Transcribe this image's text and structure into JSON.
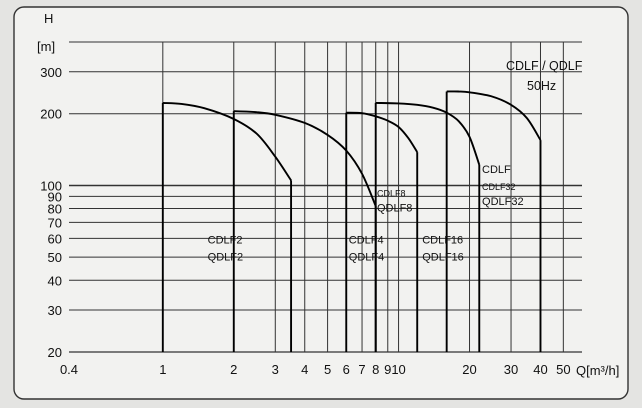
{
  "chart_data": {
    "type": "line",
    "title": "CDLF / QDLF",
    "subtitle": "50Hz",
    "ylabel_top": "H",
    "ylabel_unit": "[m]",
    "xlabel": "Q[m³/h]",
    "xscale": "log",
    "yscale": "log",
    "xlim": [
      0.4,
      60
    ],
    "ylim": [
      20,
      400
    ],
    "grid": true,
    "x_ticks": [
      0.4,
      1,
      2,
      3,
      4,
      5,
      6,
      7,
      8,
      9,
      10,
      20,
      30,
      40,
      50
    ],
    "x_tick_labels": [
      "0.4",
      "1",
      "2",
      "3",
      "4",
      "5",
      "6",
      "7",
      "8",
      "9",
      "10",
      "20",
      "30",
      "40",
      "50"
    ],
    "y_ticks": [
      20,
      30,
      40,
      50,
      60,
      70,
      80,
      90,
      100,
      200,
      300
    ],
    "y_tick_labels": [
      "20",
      "30",
      "40",
      "50",
      "60",
      "70",
      "80",
      "90",
      "100",
      "200",
      "300"
    ],
    "series": [
      {
        "name": "CDLF2",
        "alt_name": "QDLF2",
        "q_min": 1.0,
        "q_max": 3.5,
        "x": [
          1.0,
          1.2,
          1.5,
          2.0,
          2.5,
          3.0,
          3.5
        ],
        "y": [
          222,
          220,
          211,
          190,
          165,
          132,
          105
        ]
      },
      {
        "name": "CDLF4",
        "alt_name": "QDLF4",
        "q_min": 2.0,
        "q_max": 8.0,
        "x": [
          2.0,
          2.5,
          3.0,
          4.0,
          5.0,
          6.0,
          7.0,
          8.0
        ],
        "y": [
          205,
          203,
          198,
          183,
          163,
          140,
          112,
          82
        ]
      },
      {
        "name": "CDLF8",
        "alt_name": "QDLF8",
        "q_min": 6.0,
        "q_max": 12.0,
        "x": [
          6.0,
          7.0,
          8.0,
          9.0,
          10.0,
          11.0,
          12.0
        ],
        "y": [
          202,
          201,
          195,
          187,
          176,
          158,
          138
        ]
      },
      {
        "name": "CDLF16",
        "alt_name": "QDLF16",
        "q_min": 8.0,
        "q_max": 22.0,
        "x": [
          8.0,
          10.0,
          12.0,
          14.0,
          16.0,
          18.0,
          20.0,
          22.0
        ],
        "y": [
          222,
          221,
          218,
          212,
          202,
          186,
          160,
          122
        ]
      },
      {
        "name": "CDLF32",
        "alt_name": "QDLF32",
        "q_min": 16.0,
        "q_max": 40.0,
        "x": [
          16.0,
          18.0,
          20.0,
          25.0,
          30.0,
          35.0,
          40.0
        ],
        "y": [
          248,
          248,
          246,
          236,
          218,
          192,
          155
        ]
      }
    ],
    "series_labels": [
      {
        "lines": [
          "CDLF2",
          "QDLF2"
        ],
        "size": "big",
        "at": [
          1.55,
          57
        ]
      },
      {
        "lines": [
          "CDLF4",
          "QDLF4"
        ],
        "size": "big",
        "at": [
          6.15,
          57
        ]
      },
      {
        "lines": [
          "CDLF8",
          "QDLF8"
        ],
        "size": "mixed",
        "at": [
          8.1,
          90
        ]
      },
      {
        "lines": [
          "CDLF16",
          "QDLF16"
        ],
        "size": "big",
        "at": [
          12.6,
          57
        ]
      },
      {
        "lines": [
          "CDLF",
          "CDLF32",
          "QDLF32"
        ],
        "size": "mixed",
        "at": [
          22.6,
          113
        ]
      }
    ]
  }
}
